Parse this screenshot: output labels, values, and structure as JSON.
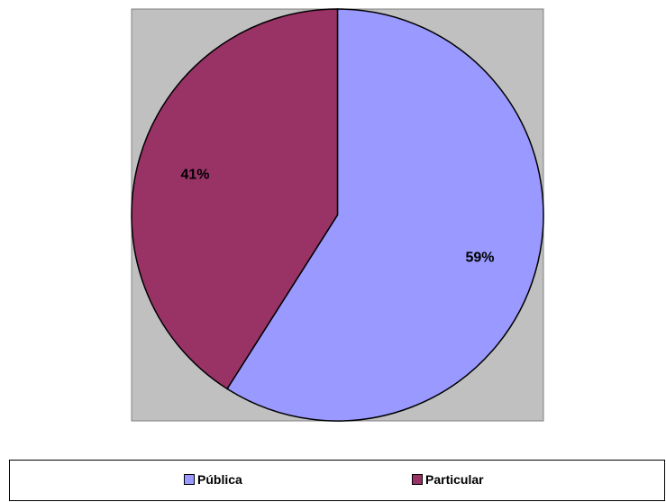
{
  "chart_data": {
    "type": "pie",
    "categories": [
      "Pública",
      "Particular"
    ],
    "values": [
      59,
      41
    ],
    "labels": [
      "59%",
      "41%"
    ],
    "colors": [
      "#9999ff",
      "#993366"
    ],
    "plot_background": "#c0c0c0",
    "legend_position": "bottom"
  },
  "legend": {
    "items": [
      {
        "label": "Pública",
        "color": "#9999ff"
      },
      {
        "label": "Particular",
        "color": "#993366"
      }
    ]
  }
}
